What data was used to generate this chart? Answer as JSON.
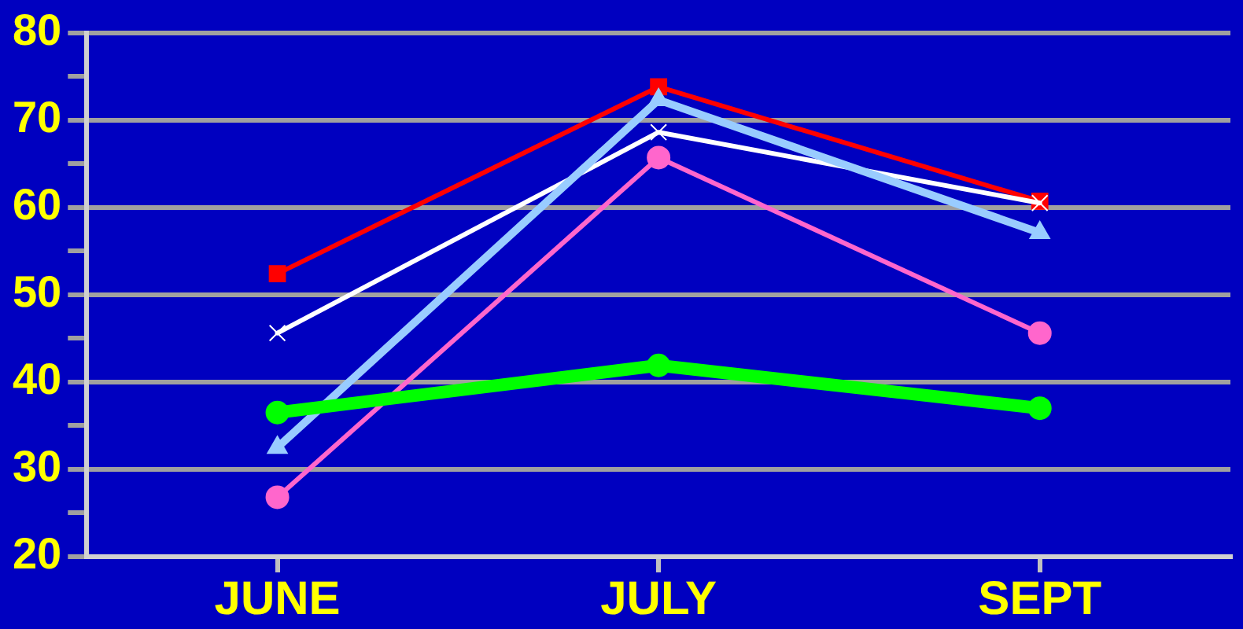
{
  "chart_data": {
    "type": "line",
    "categories": [
      "JUNE",
      "JULY",
      "SEPT"
    ],
    "series": [
      {
        "color": "#00ff00",
        "marker": "circle",
        "values": [
          36.5,
          41.9,
          37
        ]
      },
      {
        "color": "#ff66cc",
        "marker": "circle",
        "values": [
          26.8,
          65.7,
          45.6
        ]
      },
      {
        "color": "#99ccff",
        "marker": "triangle",
        "values": [
          32.5,
          72.3,
          57.1
        ]
      },
      {
        "color": "#ffffff",
        "marker": "cross",
        "values": [
          45.6,
          68.6,
          60.5
        ]
      },
      {
        "color": "#ff0000",
        "marker": "square",
        "values": [
          52.4,
          73.8,
          60.7
        ]
      }
    ],
    "ylim": [
      20,
      80
    ],
    "yticks": [
      20,
      {
        "value": 25,
        "label": null
      },
      30,
      {
        "value": 35,
        "label": null
      },
      40,
      {
        "value": 45,
        "label": null
      },
      50,
      {
        "value": 55,
        "label": null
      },
      60,
      {
        "value": 65,
        "label": null
      },
      70,
      {
        "value": 75,
        "label": null
      },
      80
    ],
    "grid": "y",
    "legend": false
  }
}
